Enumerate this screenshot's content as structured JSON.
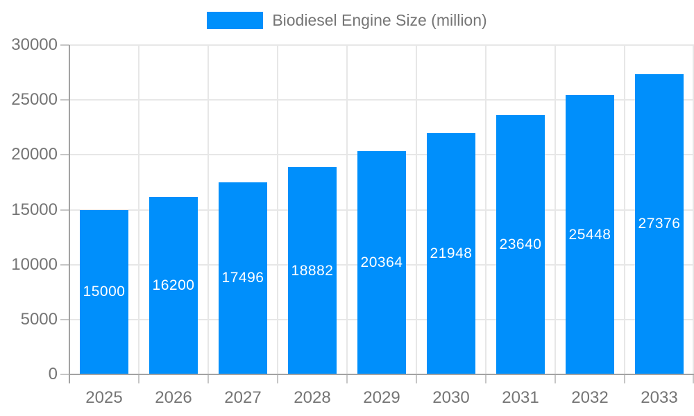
{
  "chart": {
    "legend": {
      "label": "Biodiesel Engine Size (million)",
      "swatch_color": "#008FFB"
    },
    "colors": {
      "bar": "#008FFB",
      "grid": "#e7e7e7",
      "axis": "#a3a3a3",
      "tick": "#c6c6c6",
      "axis_label": "#757575",
      "value_label": "#ffffff",
      "background": "#ffffff"
    }
  },
  "chart_data": {
    "type": "bar",
    "title": "Biodiesel Engine Size (million)",
    "categories": [
      "2025",
      "2026",
      "2027",
      "2028",
      "2029",
      "2030",
      "2031",
      "2032",
      "2033"
    ],
    "values": [
      15000,
      16200,
      17496,
      18882,
      20364,
      21948,
      23640,
      25448,
      27376
    ],
    "xlabel": "",
    "ylabel": "",
    "ylim": [
      0,
      30000
    ],
    "yticks": [
      0,
      5000,
      10000,
      15000,
      20000,
      25000,
      30000
    ],
    "grid": true,
    "legend_position": "top",
    "value_labels": "inside-center",
    "bar_color": "#008FFB"
  }
}
